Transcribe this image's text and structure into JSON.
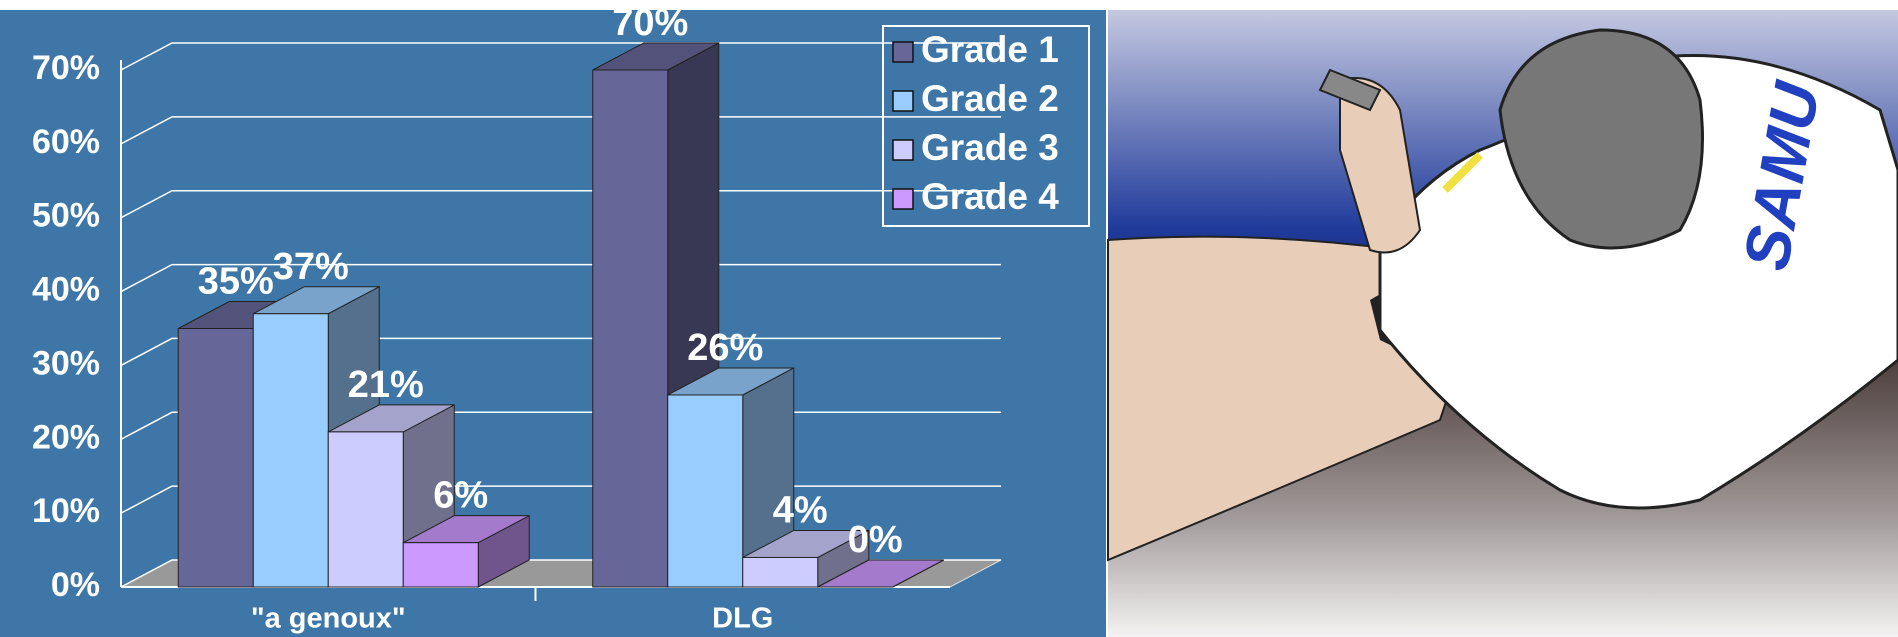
{
  "chart_data": {
    "type": "bar3d",
    "categories": [
      "\"a genoux\"",
      "DLG"
    ],
    "series": [
      {
        "name": "Grade 1",
        "color": "#666699",
        "values": [
          35,
          70
        ],
        "value_labels": [
          "35%",
          "70%"
        ]
      },
      {
        "name": "Grade 2",
        "color": "#99ccff",
        "values": [
          37,
          26
        ],
        "value_labels": [
          "37%",
          "26%"
        ]
      },
      {
        "name": "Grade 3",
        "color": "#ccccff",
        "values": [
          21,
          4
        ],
        "value_labels": [
          "21%",
          "4%"
        ]
      },
      {
        "name": "Grade 4",
        "color": "#cc99ff",
        "values": [
          6,
          0
        ],
        "value_labels": [
          "6%",
          "0%"
        ]
      }
    ],
    "ylim": [
      0,
      70
    ],
    "yticks": [
      {
        "value": 0,
        "label": "0%"
      },
      {
        "value": 10,
        "label": "10%"
      },
      {
        "value": 20,
        "label": "20%"
      },
      {
        "value": 30,
        "label": "30%"
      },
      {
        "value": 40,
        "label": "40%"
      },
      {
        "value": 50,
        "label": "50%"
      },
      {
        "value": 60,
        "label": "60%"
      },
      {
        "value": 70,
        "label": "70%"
      }
    ],
    "grid": true,
    "legend": "top-right"
  },
  "illustration": {
    "coat_text": "SAMU"
  }
}
